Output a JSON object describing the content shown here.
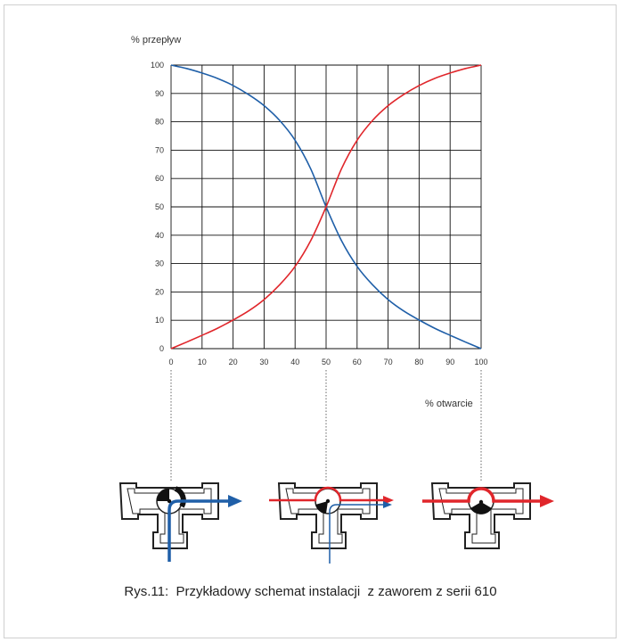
{
  "chart_data": {
    "type": "line",
    "ylabel": "% przepływ",
    "xlabel": "% otwarcie",
    "xlim": [
      0,
      100
    ],
    "ylim": [
      0,
      100
    ],
    "x_ticks": [
      0,
      10,
      20,
      30,
      40,
      50,
      60,
      70,
      80,
      90,
      100
    ],
    "y_ticks": [
      0,
      10,
      20,
      30,
      40,
      50,
      60,
      70,
      80,
      90,
      100
    ],
    "grid": true,
    "series": [
      {
        "color": "#1f5fa8",
        "x": [
          0,
          5,
          10,
          15,
          20,
          25,
          30,
          35,
          40,
          45,
          50,
          55,
          60,
          65,
          70,
          75,
          80,
          85,
          90,
          95,
          100
        ],
        "y": [
          100,
          98.8,
          97.2,
          95.3,
          92.8,
          89.6,
          85.7,
          80.5,
          73.5,
          63.5,
          50,
          38,
          29,
          22.5,
          17.3,
          13.3,
          10.1,
          7.2,
          4.7,
          2.3,
          0
        ]
      },
      {
        "color": "#e0262b",
        "x": [
          0,
          5,
          10,
          15,
          20,
          25,
          30,
          35,
          40,
          45,
          50,
          55,
          60,
          65,
          70,
          75,
          80,
          85,
          90,
          95,
          100
        ],
        "y": [
          0,
          2.3,
          4.7,
          7.2,
          10.1,
          13.3,
          17.3,
          22.5,
          29,
          38,
          50,
          63.5,
          73.5,
          80.5,
          85.7,
          89.6,
          92.8,
          95.3,
          97.2,
          98.8,
          100
        ]
      }
    ]
  },
  "diagram": {
    "valves": [
      {
        "position": 0,
        "flow_color": "#1f5fa8"
      },
      {
        "position": 50,
        "flow_color": "#1f5fa8",
        "secondary_color": "#e0262b"
      },
      {
        "position": 100,
        "flow_color": "#e0262b"
      }
    ]
  },
  "caption": "Rys.11:  Przykładowy schemat instalacji  z zaworem z serii 610",
  "colors": {
    "grid": "#111111",
    "blue": "#1f5fa8",
    "red": "#e0262b"
  }
}
